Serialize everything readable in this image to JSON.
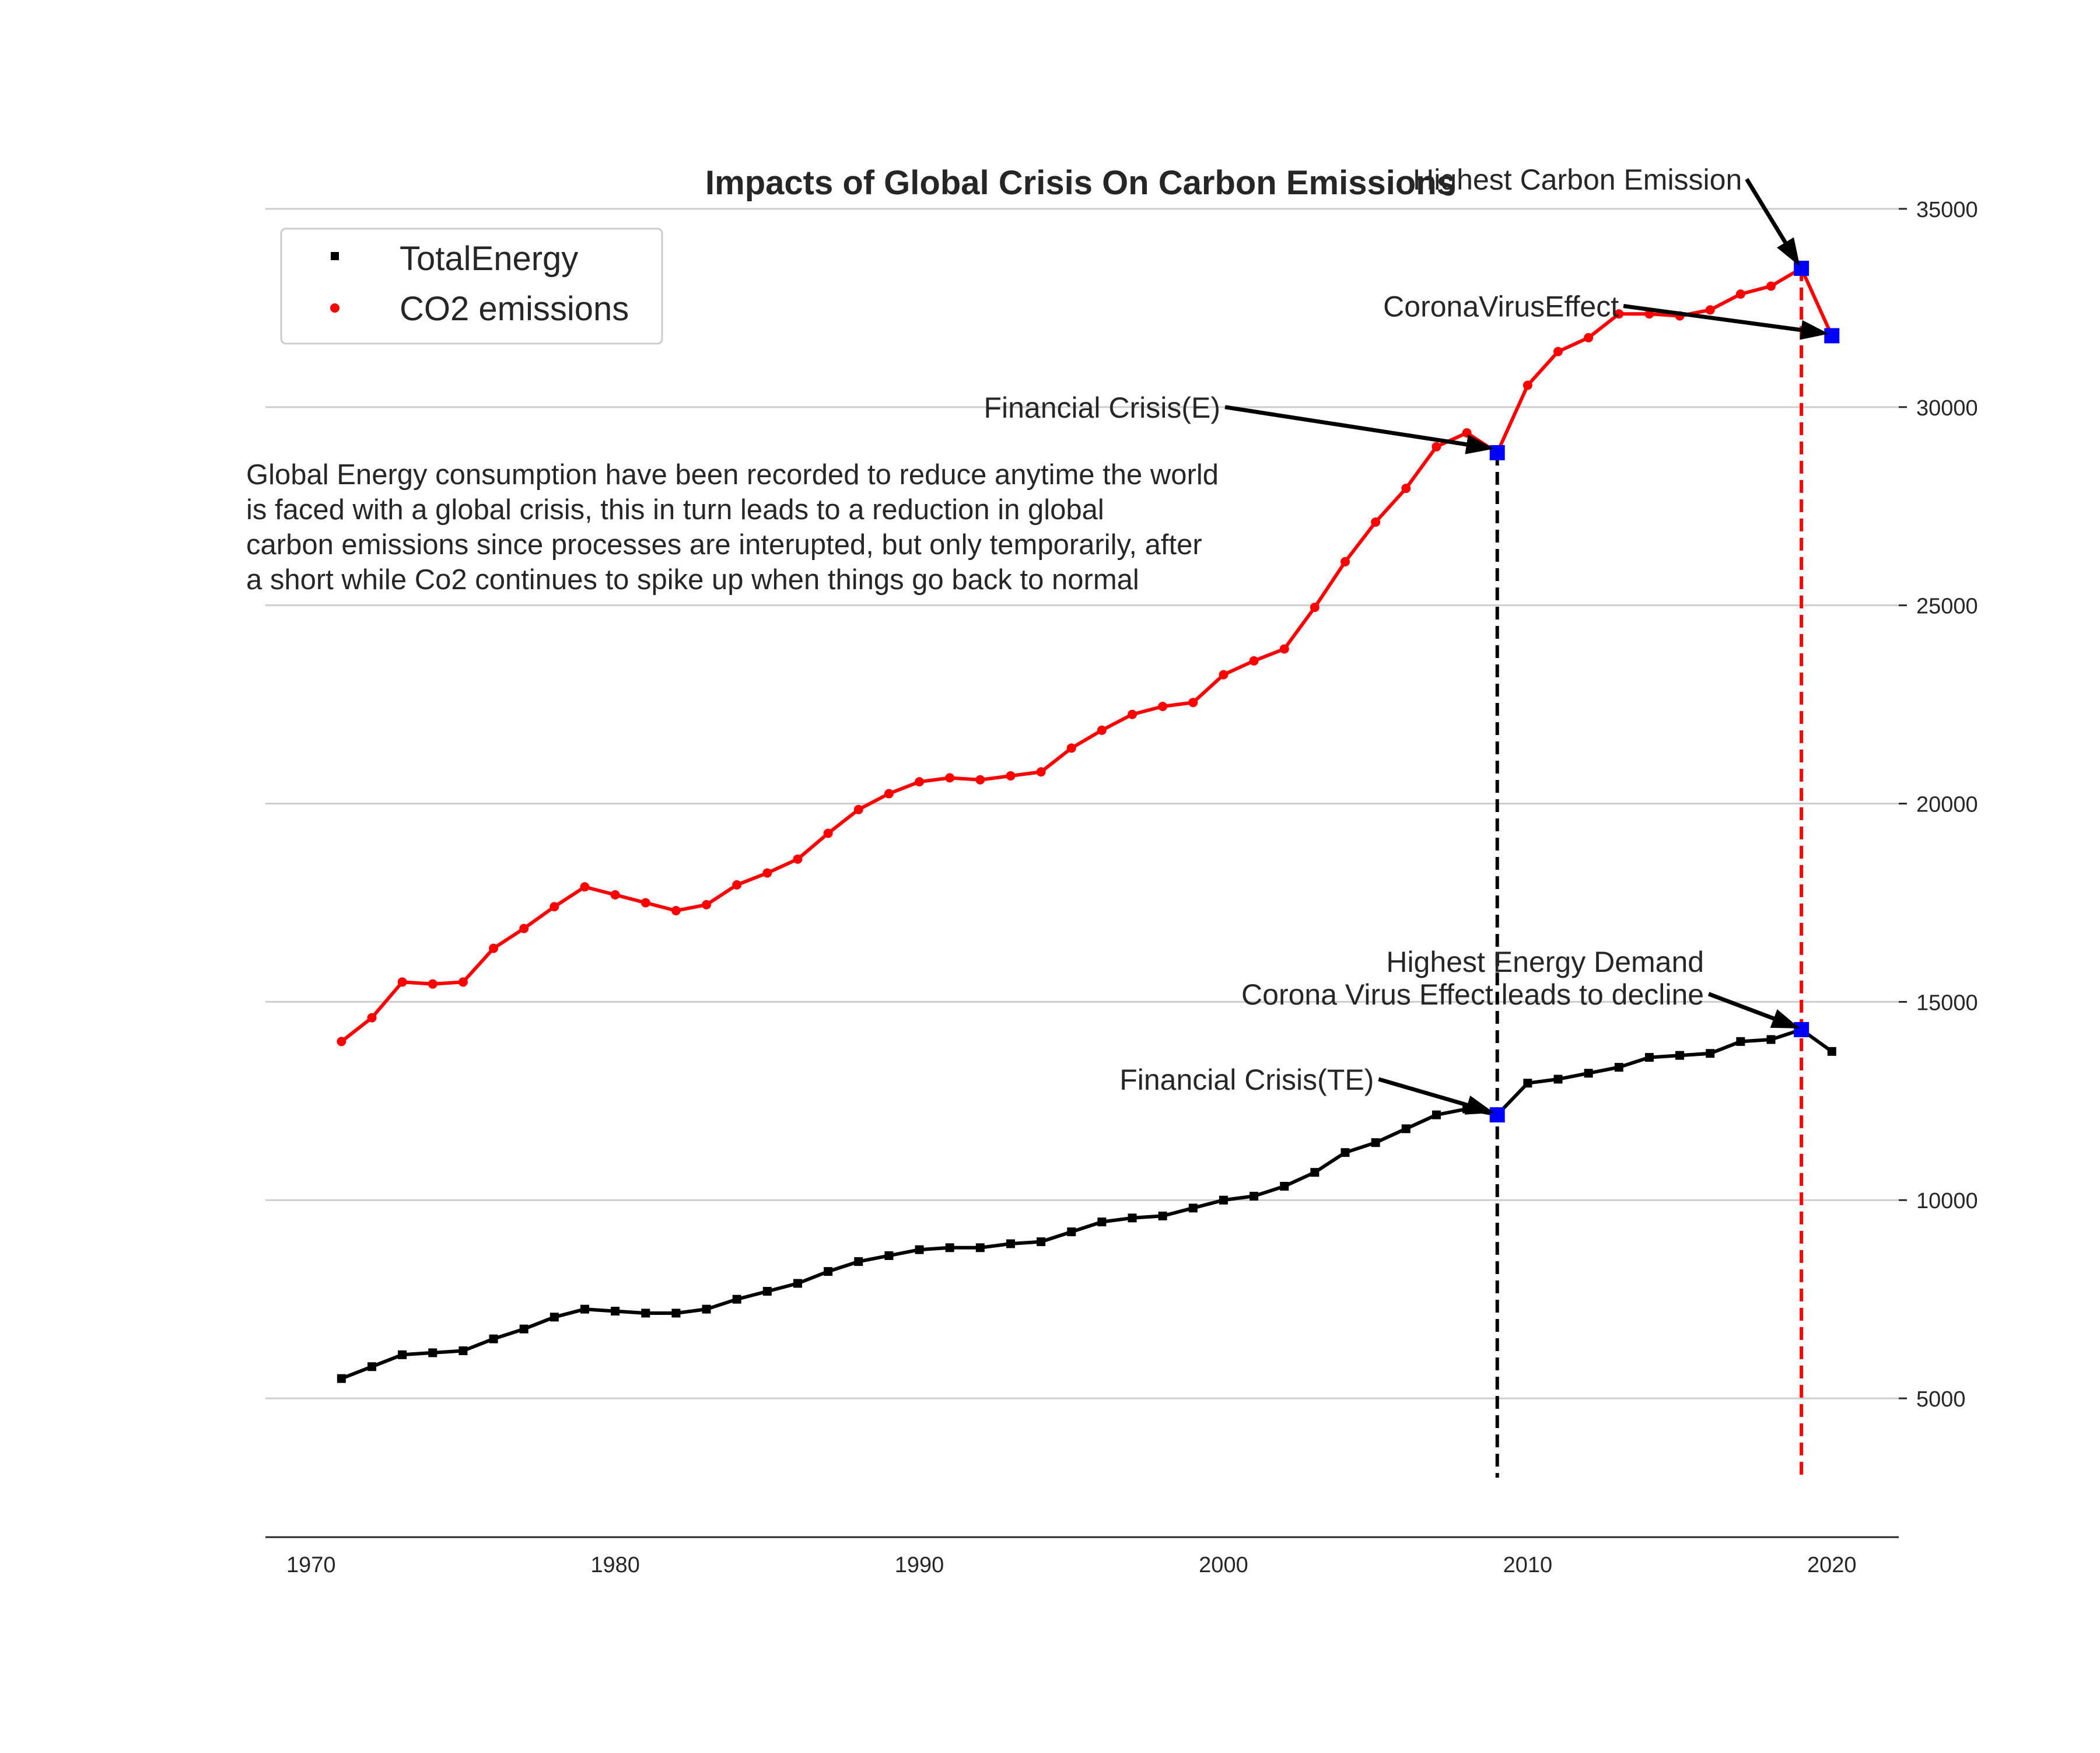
{
  "chart_data": {
    "type": "line",
    "title": "Impacts of Global Crisis On Carbon Emissions",
    "xlabel": "",
    "ylabel": "",
    "xlim": [
      1968.5,
      2022.2
    ],
    "ylim": [
      1500,
      36000
    ],
    "xticks": [
      1970,
      1980,
      1990,
      2000,
      2010,
      2020
    ],
    "yticks": [
      5000,
      10000,
      15000,
      20000,
      25000,
      30000,
      35000
    ],
    "y_axis_side": "right",
    "grid": "horizontal",
    "legend_position": "top-left",
    "x": [
      1971,
      1972,
      1973,
      1974,
      1975,
      1976,
      1977,
      1978,
      1979,
      1980,
      1981,
      1982,
      1983,
      1984,
      1985,
      1986,
      1987,
      1988,
      1989,
      1990,
      1991,
      1992,
      1993,
      1994,
      1995,
      1996,
      1997,
      1998,
      1999,
      2000,
      2001,
      2002,
      2003,
      2004,
      2005,
      2006,
      2007,
      2008,
      2009,
      2010,
      2011,
      2012,
      2013,
      2014,
      2015,
      2016,
      2017,
      2018,
      2019,
      2020
    ],
    "series": [
      {
        "name": "TotalEnergy",
        "color": "#000000",
        "marker": "square",
        "values": [
          5500,
          5800,
          6100,
          6150,
          6200,
          6500,
          6750,
          7050,
          7250,
          7200,
          7150,
          7150,
          7250,
          7500,
          7700,
          7900,
          8200,
          8450,
          8600,
          8750,
          8800,
          8800,
          8900,
          8950,
          9200,
          9450,
          9550,
          9600,
          9800,
          10000,
          10100,
          10350,
          10700,
          11200,
          11450,
          11800,
          12150,
          12300,
          12150,
          12950,
          13050,
          13200,
          13350,
          13600,
          13650,
          13700,
          14000,
          14050,
          14300,
          13750
        ]
      },
      {
        "name": "CO2 emissions",
        "color": "#ff0000",
        "marker": "circle",
        "values": [
          14000,
          14600,
          15500,
          15450,
          15500,
          16350,
          16850,
          17400,
          17900,
          17700,
          17500,
          17300,
          17450,
          17950,
          18250,
          18600,
          19250,
          19850,
          20250,
          20550,
          20650,
          20600,
          20700,
          20800,
          21400,
          21850,
          22250,
          22450,
          22550,
          23250,
          23600,
          23900,
          24950,
          26100,
          27100,
          27950,
          29000,
          29350,
          28850,
          30550,
          31400,
          31750,
          32350,
          32350,
          32300,
          32450,
          32850,
          33050,
          33500,
          31800
        ]
      }
    ],
    "highlight_points": [
      {
        "series": "TotalEnergy",
        "x": 2009,
        "y": 12150
      },
      {
        "series": "TotalEnergy",
        "x": 2019,
        "y": 14300
      },
      {
        "series": "CO2 emissions",
        "x": 2009,
        "y": 28850
      },
      {
        "series": "CO2 emissions",
        "x": 2019,
        "y": 33500
      },
      {
        "series": "CO2 emissions",
        "x": 2020,
        "y": 31800
      }
    ],
    "vertical_lines": [
      {
        "x": 2009,
        "color": "#000000",
        "style": "dashed",
        "y_from": 3000,
        "y_to": 28850
      },
      {
        "x": 2019,
        "color": "#ff0000",
        "style": "dashed",
        "y_from": 3000,
        "y_to": 33500
      }
    ],
    "annotations": [
      {
        "id": "ann-financial-crisis-e",
        "text": [
          "Financial Crisis(E)"
        ],
        "text_x": 2000.05,
        "text_y": 30000,
        "target_x": 2008.9,
        "target_y": 28950
      },
      {
        "id": "ann-highest-carbon",
        "text": [
          "Highest Carbon Emission"
        ],
        "text_x": 2017.2,
        "text_y": 35750,
        "target_x": 2018.95,
        "target_y": 33550
      },
      {
        "id": "ann-corona-effect",
        "text": [
          "CoronaVirusEffect"
        ],
        "text_x": 2013.15,
        "text_y": 32550,
        "target_x": 2019.9,
        "target_y": 31850
      },
      {
        "id": "ann-highest-energy",
        "text": [
          "Highest Energy Demand",
          "Corona Virus Effect leads to decline"
        ],
        "text_x": 2015.95,
        "text_y": 15200,
        "target_x": 2018.95,
        "target_y": 14330
      },
      {
        "id": "ann-financial-crisis-te",
        "text": [
          "Financial Crisis(TE)"
        ],
        "text_x": 2005.1,
        "text_y": 13050,
        "target_x": 2008.9,
        "target_y": 12200
      }
    ],
    "note": [
      "Global Energy consumption have been recorded to reduce anytime the world",
      "is faced with a global crisis, this in turn leads to a reduction in global",
      "carbon emissions since processes are interupted, but only temporarily, after",
      "a short while Co2 continues to spike up when things go back to normal"
    ],
    "colors": {
      "highlight": "#0000ff",
      "grid": "#cccccc",
      "axis": "#262626",
      "text": "#262626"
    }
  }
}
